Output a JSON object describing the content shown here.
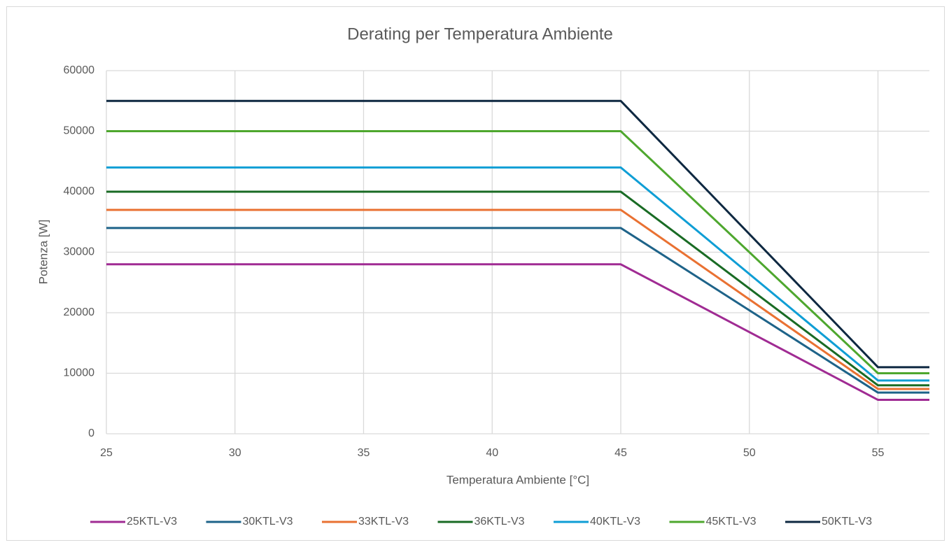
{
  "chart_data": {
    "type": "line",
    "title": "Derating per Temperatura Ambiente",
    "x_label": "Temperatura Ambiente [°C]",
    "y_label": "Potenza [W]",
    "x": [
      25,
      45,
      55,
      57
    ],
    "series": [
      {
        "name": "25KTL-V3",
        "color": "#a02b93",
        "values": [
          28000,
          28000,
          5600,
          5600
        ]
      },
      {
        "name": "30KTL-V3",
        "color": "#1e6389",
        "values": [
          34000,
          34000,
          6800,
          6800
        ]
      },
      {
        "name": "33KTL-V3",
        "color": "#e97132",
        "values": [
          37000,
          37000,
          7400,
          7400
        ]
      },
      {
        "name": "36KTL-V3",
        "color": "#196b24",
        "values": [
          40000,
          40000,
          8000,
          8000
        ]
      },
      {
        "name": "40KTL-V3",
        "color": "#0f9ed5",
        "values": [
          44000,
          44000,
          8800,
          8800
        ]
      },
      {
        "name": "45KTL-V3",
        "color": "#4ea72e",
        "values": [
          50000,
          50000,
          10000,
          10000
        ]
      },
      {
        "name": "50KTL-V3",
        "color": "#0e2841",
        "values": [
          55000,
          55000,
          11000,
          11000
        ]
      }
    ],
    "xlim": [
      25,
      57
    ],
    "ylim": [
      0,
      60000
    ],
    "xticks": [
      25,
      30,
      35,
      40,
      45,
      50,
      55
    ],
    "yticks": [
      0,
      10000,
      20000,
      30000,
      40000,
      50000,
      60000
    ],
    "grid": true,
    "legend": "bottom"
  }
}
